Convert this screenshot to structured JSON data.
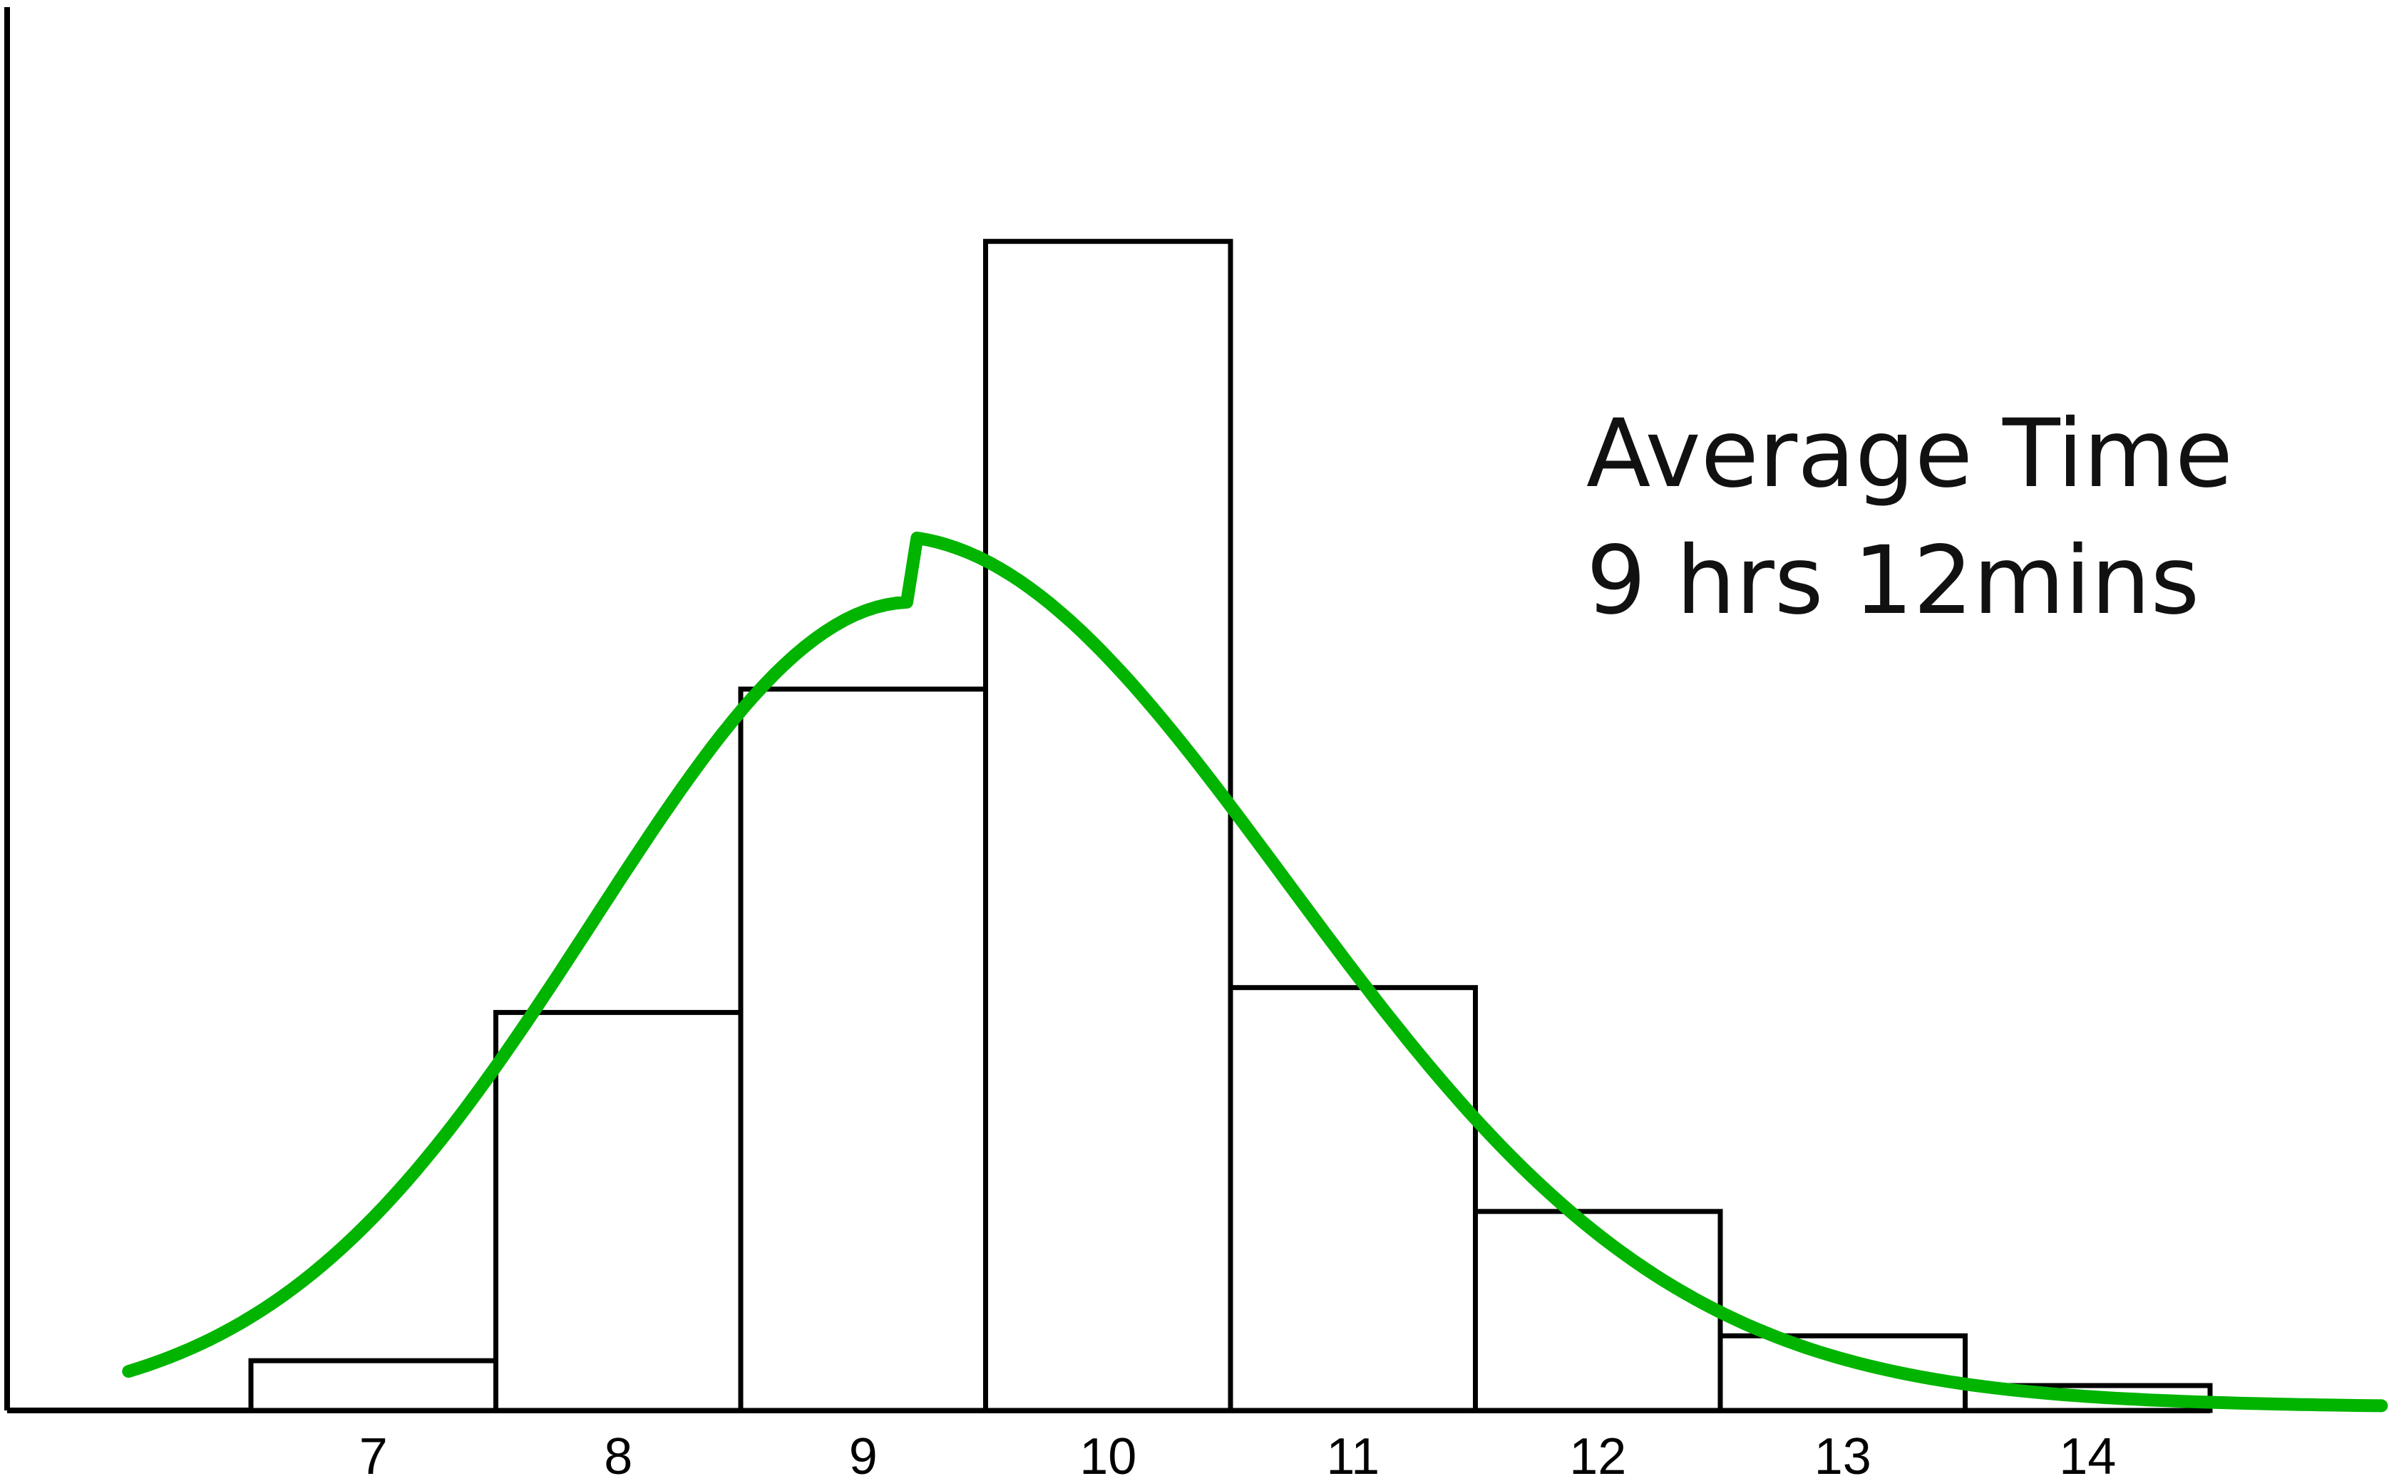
{
  "chart_data": {
    "type": "bar",
    "categories": [
      "7",
      "8",
      "9",
      "10",
      "11",
      "12",
      "13",
      "14"
    ],
    "values": [
      2,
      16,
      29,
      47,
      17,
      8,
      3,
      1
    ],
    "ylim": [
      0,
      50
    ],
    "grid": false,
    "annotations": [
      "Average Time",
      "9 hrs 12mins"
    ],
    "fitted_curve": {
      "type": "line",
      "mean": 9.2,
      "color": "#00b400"
    },
    "colors": {
      "bar_fill": "#ffffff",
      "bar_stroke": "#000000",
      "axis": "#000000",
      "curve": "#00b400"
    }
  }
}
